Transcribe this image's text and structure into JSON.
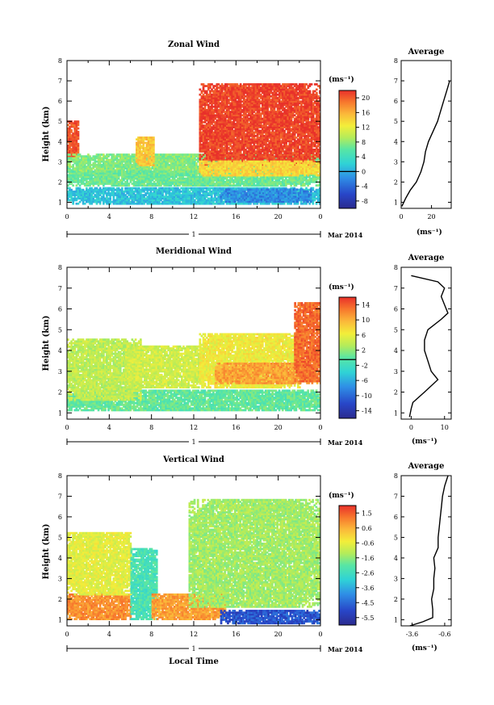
{
  "figure": {
    "x_label": "Local Time",
    "date_label": "Mar 2014",
    "day_label": "1"
  },
  "chart_data": [
    {
      "type": "heatmap",
      "title": "Zonal Wind",
      "ylabel": "Height (km)",
      "xlabel": "",
      "x_ticks": [
        "0",
        "4",
        "8",
        "12",
        "16",
        "20",
        "0"
      ],
      "x_range_hours": [
        0,
        24
      ],
      "y_ticks": [
        "1",
        "2",
        "3",
        "4",
        "5",
        "6",
        "7",
        "8"
      ],
      "ylim": [
        0.7,
        8.0
      ],
      "colorbar": {
        "unit": "(ms⁻¹)",
        "range": [
          -10,
          22
        ],
        "ticks": [
          "20",
          "16",
          "12",
          "8",
          "4",
          "0",
          "-4",
          "-8"
        ],
        "zero_line": 0
      },
      "pattern": [
        {
          "t": [
            0,
            1
          ],
          "h": [
            3.0,
            5.0
          ],
          "value": 20
        },
        {
          "t": [
            0,
            24
          ],
          "h": [
            2.3,
            3.4
          ],
          "value": 6
        },
        {
          "t": [
            0,
            24
          ],
          "h": [
            1.8,
            2.5
          ],
          "value": 5
        },
        {
          "t": [
            0,
            24
          ],
          "h": [
            0.9,
            1.7
          ],
          "value": 0
        },
        {
          "t": [
            6.5,
            8.2
          ],
          "h": [
            2.8,
            4.2
          ],
          "value": 14
        },
        {
          "t": [
            12.5,
            24
          ],
          "h": [
            2.8,
            6.8
          ],
          "value": 21
        },
        {
          "t": [
            12.5,
            24
          ],
          "h": [
            2.3,
            3.0
          ],
          "value": 13
        },
        {
          "t": [
            14.5,
            23
          ],
          "h": [
            1.0,
            1.6
          ],
          "value": -3
        }
      ],
      "average_profile": {
        "title": "Average",
        "x_ticks": [
          "0",
          "20"
        ],
        "xlim": [
          0,
          33
        ],
        "unit": "(ms⁻¹)",
        "height": [
          0.8,
          1.2,
          1.6,
          2.0,
          2.5,
          3.0,
          3.5,
          4.0,
          4.5,
          5.0,
          5.5,
          6.0,
          6.5,
          7.0
        ],
        "value": [
          0.5,
          3,
          6,
          10,
          13,
          15,
          16,
          18,
          21,
          24,
          26,
          28,
          30,
          32
        ]
      }
    },
    {
      "type": "heatmap",
      "title": "Meridional Wind",
      "ylabel": "Height (km)",
      "xlabel": "",
      "x_ticks": [
        "0",
        "4",
        "8",
        "12",
        "16",
        "20",
        "0"
      ],
      "x_range_hours": [
        0,
        24
      ],
      "y_ticks": [
        "1",
        "2",
        "3",
        "4",
        "5",
        "6",
        "7",
        "8"
      ],
      "ylim": [
        0.7,
        8.0
      ],
      "colorbar": {
        "unit": "(ms⁻¹)",
        "range": [
          -16,
          17
        ],
        "ticks": [
          "14",
          "10",
          "6",
          "2",
          "-2",
          "-6",
          "-10",
          "-14"
        ],
        "zero_line": 0
      },
      "pattern": [
        {
          "t": [
            0,
            24
          ],
          "h": [
            1.1,
            2.1
          ],
          "value": -1
        },
        {
          "t": [
            0,
            7
          ],
          "h": [
            1.6,
            4.5
          ],
          "value": 3
        },
        {
          "t": [
            5.5,
            13
          ],
          "h": [
            2.2,
            4.2
          ],
          "value": 4
        },
        {
          "t": [
            12.5,
            22
          ],
          "h": [
            2.2,
            4.8
          ],
          "value": 6
        },
        {
          "t": [
            14,
            24
          ],
          "h": [
            2.4,
            3.4
          ],
          "value": 11
        },
        {
          "t": [
            21.5,
            24
          ],
          "h": [
            2.5,
            6.3
          ],
          "value": 14
        }
      ],
      "average_profile": {
        "title": "Average",
        "x_ticks": [
          "0",
          "10"
        ],
        "xlim": [
          -3,
          12
        ],
        "unit": "(ms⁻¹)",
        "height": [
          0.8,
          1.2,
          1.5,
          2.0,
          2.6,
          3.0,
          3.5,
          4.0,
          4.5,
          5.0,
          5.5,
          5.8,
          6.2,
          6.6,
          7.0,
          7.3,
          7.6
        ],
        "value": [
          -0.5,
          0,
          0.5,
          4,
          8,
          6,
          5,
          4,
          4,
          5,
          9,
          11,
          10,
          9,
          10,
          8,
          0
        ]
      }
    },
    {
      "type": "heatmap",
      "title": "Vertical Wind",
      "ylabel": "Height (km)",
      "xlabel": "Local Time",
      "x_ticks": [
        "0",
        "4",
        "8",
        "12",
        "16",
        "20",
        "0"
      ],
      "x_range_hours": [
        0,
        24
      ],
      "y_ticks": [
        "1",
        "2",
        "3",
        "4",
        "5",
        "6",
        "7",
        "8"
      ],
      "ylim": [
        0.7,
        8.0
      ],
      "colorbar": {
        "unit": "(ms⁻¹)",
        "range": [
          -6.0,
          1.8
        ],
        "ticks": [
          "1.5",
          "0.6",
          "-0.6",
          "-1.6",
          "-2.6",
          "-3.6",
          "-4.5",
          "-5.5"
        ],
        "zero_line": null
      },
      "pattern": [
        {
          "t": [
            0,
            6
          ],
          "h": [
            1.0,
            2.2
          ],
          "value": 0.6
        },
        {
          "t": [
            0,
            6
          ],
          "h": [
            2.2,
            5.2
          ],
          "value": -1.0
        },
        {
          "t": [
            6,
            8.5
          ],
          "h": [
            1.0,
            4.4
          ],
          "value": -2.8
        },
        {
          "t": [
            8,
            15
          ],
          "h": [
            1.0,
            2.2
          ],
          "value": 0.4
        },
        {
          "t": [
            11.5,
            24
          ],
          "h": [
            1.6,
            6.8
          ],
          "value": -1.8
        },
        {
          "t": [
            14.5,
            24
          ],
          "h": [
            0.8,
            1.4
          ],
          "value": -5.0
        }
      ],
      "average_profile": {
        "title": "Average",
        "x_ticks": [
          "-3.6",
          "-0.6"
        ],
        "xlim": [
          -4.6,
          0.0
        ],
        "unit": "(ms⁻¹)",
        "height": [
          0.7,
          0.9,
          1.1,
          1.5,
          2.0,
          2.5,
          3.0,
          3.5,
          4.0,
          4.5,
          5.0,
          5.5,
          6.0,
          6.5,
          7.0,
          7.5,
          8.0
        ],
        "value": [
          -3.8,
          -2.6,
          -1.7,
          -1.7,
          -1.8,
          -1.6,
          -1.6,
          -1.5,
          -1.6,
          -1.2,
          -1.2,
          -1.1,
          -1.0,
          -0.9,
          -0.8,
          -0.6,
          -0.3
        ]
      }
    }
  ]
}
